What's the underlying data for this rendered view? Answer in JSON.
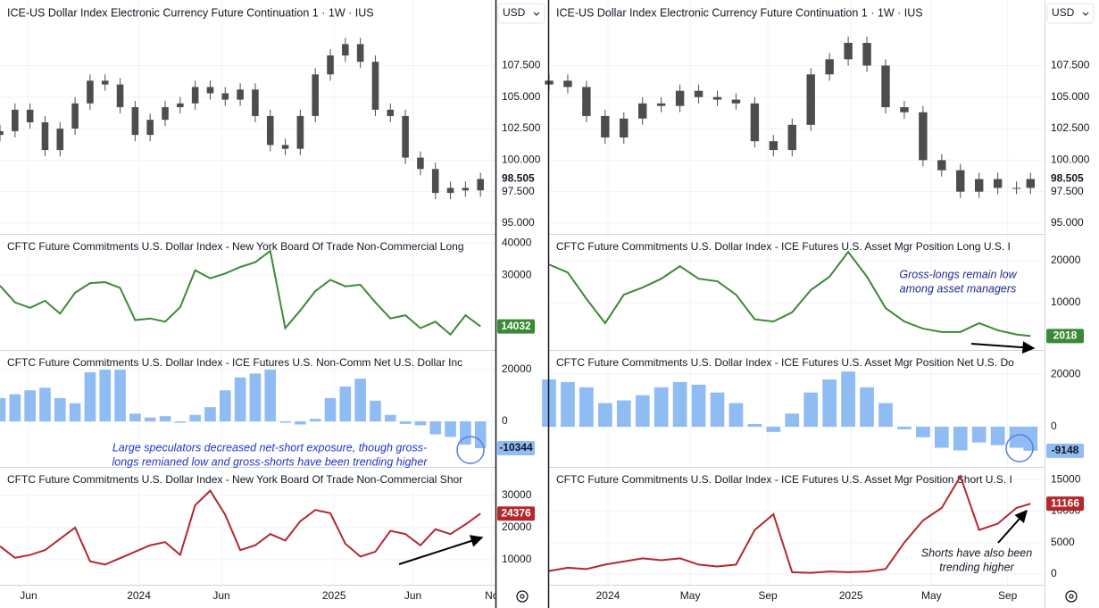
{
  "chart_data": [
    {
      "type": "candlestick",
      "title": "ICE-US Dollar Index Electronic Currency Future Continuation 1 · 1W · IUS",
      "currency": "USD",
      "color": "#4d4d4d",
      "x": [
        0,
        4,
        8,
        12,
        16,
        20,
        24,
        28,
        32,
        36,
        40,
        44,
        48,
        52,
        56,
        60,
        64,
        68,
        72,
        76,
        80,
        84,
        88,
        92,
        96,
        100,
        104,
        108,
        112,
        116,
        120,
        124,
        128
      ],
      "open": [
        102.0,
        102.3,
        104,
        103,
        100.8,
        102.5,
        104.5,
        106.3,
        106,
        104.2,
        102,
        103.2,
        104.2,
        104.5,
        105.8,
        105.3,
        104.8,
        105.6,
        103.5,
        101.2,
        100.9,
        103.5,
        106.8,
        108.3,
        109.2,
        107.8,
        104,
        103.5,
        100.2,
        99.3,
        97.4,
        97.8,
        97.6
      ],
      "high": [
        102.8,
        104.5,
        104.5,
        103.5,
        103,
        105,
        106.8,
        106.8,
        106.5,
        104.7,
        103.7,
        104.7,
        105,
        106.3,
        106.3,
        105.8,
        106.1,
        106.1,
        104,
        101.7,
        104,
        107.3,
        108.8,
        109.7,
        109.7,
        108.3,
        104.5,
        104,
        100.7,
        99.8,
        98.3,
        98.3,
        99.0
      ],
      "low": [
        101.5,
        101.8,
        102.5,
        100.3,
        100.3,
        102,
        104,
        105.5,
        103.7,
        101.5,
        101.5,
        102.7,
        103.7,
        104,
        104.8,
        104.3,
        104.3,
        103,
        100.7,
        100.4,
        100.4,
        103,
        106.3,
        107.8,
        107.3,
        103.5,
        103,
        99.7,
        98.8,
        96.9,
        96.9,
        97.1,
        97.1
      ],
      "close": [
        102.3,
        104,
        103,
        100.8,
        102.5,
        104.5,
        106.3,
        106,
        104.2,
        102,
        103.2,
        104.2,
        104.5,
        105.8,
        105.3,
        104.8,
        105.6,
        103.5,
        101.2,
        100.9,
        103.5,
        106.8,
        108.3,
        109.2,
        107.8,
        104,
        103.5,
        100.2,
        99.3,
        97.4,
        97.8,
        97.6,
        98.505
      ],
      "xlim": [
        0,
        132
      ],
      "ylim": [
        94.15,
        112.7
      ],
      "yticks": [
        {
          "value": 95,
          "label": "95.000"
        },
        {
          "value": 97.5,
          "label": "97.500"
        },
        {
          "value": 100,
          "label": "100.000"
        },
        {
          "value": 102.5,
          "label": "102.500"
        },
        {
          "value": 105,
          "label": "105.000"
        },
        {
          "value": 107.5,
          "label": "107.500"
        }
      ]
    },
    {
      "type": "line",
      "title": "CFTC Future Commitments U.S. Dollar Index - New York Board Of Trade Non-Commercial Long",
      "color": "#3a8a35",
      "x": [
        0,
        4,
        8,
        12,
        16,
        20,
        24,
        28,
        32,
        36,
        40,
        44,
        48,
        52,
        56,
        60,
        64,
        68,
        72,
        76,
        80,
        84,
        88,
        92,
        96,
        100,
        104,
        108,
        112,
        116,
        120,
        124,
        128
      ],
      "values": [
        26700,
        21500,
        19800,
        22000,
        18000,
        24500,
        27500,
        27800,
        26000,
        16000,
        16500,
        15500,
        20000,
        31500,
        29000,
        30500,
        32500,
        34000,
        37500,
        13500,
        19000,
        25000,
        28500,
        26500,
        27000,
        21500,
        16500,
        17500,
        13500,
        15500,
        11500,
        17500,
        14032
      ],
      "xlim": [
        0,
        132
      ],
      "ylim": [
        6700,
        42800
      ],
      "yticks": [
        30000,
        40000
      ]
    },
    {
      "type": "bar",
      "title": "CFTC Future Commitments U.S. Dollar Index - ICE Futures U.S. Non-Comm Net U.S. Dollar Inc",
      "color": "#8fbcf3",
      "x": [
        0,
        4,
        8,
        12,
        16,
        20,
        24,
        28,
        32,
        36,
        40,
        44,
        48,
        52,
        56,
        60,
        64,
        68,
        72,
        76,
        80,
        84,
        88,
        92,
        96,
        100,
        104,
        108,
        112,
        116,
        120,
        124,
        128
      ],
      "values": [
        9000,
        10500,
        12000,
        13000,
        9000,
        7000,
        19000,
        20000,
        20000,
        3000,
        1500,
        2000,
        -500,
        2500,
        5500,
        12000,
        17000,
        18500,
        20000,
        -500,
        -1200,
        1000,
        9000,
        13500,
        16500,
        8000,
        2500,
        -1000,
        -1500,
        -5000,
        -6000,
        -9000,
        -10344
      ],
      "xlim": [
        0,
        132
      ],
      "ylim": [
        -17600,
        27600
      ],
      "yticks": [
        0,
        20000
      ],
      "annotation": [
        "Large speculators decreased net-short exposure, though gross-",
        "longs remianed low and gross-shorts have been trending higher"
      ]
    },
    {
      "type": "line",
      "title": "CFTC Future Commitments U.S. Dollar Index - New York Board Of Trade Non-Commercial Shor",
      "color": "#b3282d",
      "x": [
        0,
        4,
        8,
        12,
        16,
        20,
        24,
        28,
        32,
        36,
        40,
        44,
        48,
        52,
        56,
        60,
        64,
        68,
        72,
        76,
        80,
        84,
        88,
        92,
        96,
        100,
        104,
        108,
        112,
        116,
        120,
        124,
        128
      ],
      "values": [
        14200,
        10600,
        11500,
        13000,
        16500,
        20000,
        9500,
        8500,
        10500,
        12500,
        14500,
        15500,
        11500,
        27000,
        31500,
        24000,
        13000,
        14500,
        18000,
        16000,
        22000,
        25500,
        24500,
        15000,
        11000,
        12500,
        19000,
        18000,
        14500,
        19500,
        18000,
        21000,
        24376
      ],
      "xlim": [
        0,
        132
      ],
      "ylim": [
        2200,
        38900
      ],
      "yticks": [
        10000,
        20000,
        30000
      ],
      "xticks": [
        {
          "value": 7.6,
          "label": "Jun"
        },
        {
          "value": 37,
          "label": "2024"
        },
        {
          "value": 59,
          "label": "Jun"
        },
        {
          "value": 89,
          "label": "2025"
        },
        {
          "value": 110,
          "label": "Jun"
        },
        {
          "value": 131,
          "label": "No"
        }
      ]
    },
    {
      "type": "candlestick",
      "title": "ICE-US Dollar Index Electronic Currency Future Continuation 1 · 1W · IUS",
      "currency": "USD",
      "color": "#4d4d4d",
      "x": [
        0,
        4,
        8,
        12,
        16,
        20,
        24,
        28,
        32,
        36,
        40,
        44,
        48,
        52,
        56,
        60,
        64,
        68,
        72,
        76,
        80,
        84,
        88,
        92,
        96,
        100,
        103
      ],
      "open": [
        106.0,
        106.3,
        105.8,
        103.5,
        101.8,
        103.3,
        104.5,
        104.3,
        105.5,
        105,
        104.8,
        104.5,
        101.5,
        100.8,
        102.8,
        106.8,
        108,
        109.3,
        107.5,
        104.2,
        103.8,
        100,
        99.2,
        97.5,
        98.5,
        97.8,
        97.8
      ],
      "high": [
        106.8,
        106.8,
        106.3,
        104,
        103.8,
        105,
        105,
        106,
        106,
        105.5,
        105.3,
        105,
        102,
        103.3,
        107.3,
        108.5,
        109.8,
        109.8,
        108,
        104.7,
        104.3,
        100.5,
        99.7,
        99,
        99,
        98.3,
        99.0
      ],
      "low": [
        105.5,
        105.3,
        103,
        101.3,
        101.3,
        102.8,
        103.8,
        103.8,
        104.5,
        104.3,
        104,
        101,
        100.3,
        100.3,
        102.3,
        106.3,
        107.5,
        107,
        103.7,
        103.3,
        99.5,
        98.7,
        97,
        97,
        97.3,
        97.3,
        97.3
      ],
      "close": [
        106.3,
        105.8,
        103.5,
        101.8,
        103.3,
        104.5,
        104.3,
        105.5,
        105,
        104.8,
        104.5,
        101.5,
        100.8,
        102.8,
        106.8,
        108,
        109.3,
        107.5,
        104.2,
        103.8,
        100,
        99.2,
        97.5,
        98.5,
        97.8,
        97.8,
        98.505
      ],
      "xlim": [
        0,
        106
      ],
      "ylim": [
        94.15,
        112.7
      ],
      "yticks": [
        {
          "value": 95,
          "label": "95.000"
        },
        {
          "value": 97.5,
          "label": "97.500"
        },
        {
          "value": 100,
          "label": "100.000"
        },
        {
          "value": 102.5,
          "label": "102.500"
        },
        {
          "value": 105,
          "label": "105.000"
        },
        {
          "value": 107.5,
          "label": "107.500"
        }
      ]
    },
    {
      "type": "line",
      "title": "CFTC Future Commitments U.S. Dollar Index - ICE Futures U.S. Asset Mgr Position Long U.S. I",
      "color": "#3a8a35",
      "x": [
        0,
        4,
        8,
        12,
        16,
        20,
        24,
        28,
        32,
        36,
        40,
        44,
        48,
        52,
        56,
        60,
        64,
        68,
        72,
        76,
        80,
        84,
        88,
        92,
        96,
        100,
        103
      ],
      "values": [
        19100,
        17200,
        10900,
        5100,
        11900,
        13600,
        15700,
        18700,
        15700,
        15100,
        11900,
        6000,
        5500,
        7700,
        13000,
        16200,
        22100,
        16200,
        8700,
        5500,
        3800,
        3000,
        3000,
        5100,
        3400,
        2400,
        2018
      ],
      "xlim": [
        0,
        106
      ],
      "ylim": [
        -1300,
        26400
      ],
      "yticks": [
        10000,
        20000
      ],
      "annotation": [
        "Gross-longs remain low",
        "among asset managers"
      ]
    },
    {
      "type": "bar",
      "title": "CFTC Future Commitments U.S. Dollar Index - ICE Futures U.S. Asset Mgr Position Net U.S. Do",
      "color": "#8fbcf3",
      "x": [
        0,
        4,
        8,
        12,
        16,
        20,
        24,
        28,
        32,
        36,
        40,
        44,
        48,
        52,
        56,
        60,
        64,
        68,
        72,
        76,
        80,
        84,
        88,
        92,
        96,
        100,
        103
      ],
      "values": [
        18000,
        17000,
        15000,
        9000,
        10000,
        12000,
        15000,
        17000,
        16000,
        13000,
        9000,
        1000,
        -2000,
        5000,
        13000,
        18000,
        21000,
        15000,
        9000,
        -1000,
        -4000,
        -8000,
        -9000,
        -6000,
        -7000,
        -8000,
        -9148
      ],
      "xlim": [
        0,
        106
      ],
      "ylim": [
        -15300,
        29200
      ],
      "yticks": [
        0,
        20000
      ]
    },
    {
      "type": "line",
      "title": "CFTC Future Commitments U.S. Dollar Index - ICE Futures U.S. Asset Mgr Position Short U.S. I",
      "color": "#b3282d",
      "x": [
        0,
        4,
        8,
        12,
        16,
        20,
        24,
        28,
        32,
        36,
        40,
        44,
        48,
        52,
        56,
        60,
        64,
        68,
        72,
        76,
        80,
        84,
        88,
        92,
        96,
        100,
        103
      ],
      "values": [
        500,
        1000,
        800,
        1500,
        2000,
        2500,
        2200,
        2500,
        1500,
        1200,
        1500,
        7000,
        9500,
        300,
        200,
        400,
        300,
        400,
        800,
        5000,
        8500,
        10500,
        15500,
        7000,
        8000,
        10500,
        11166
      ],
      "xlim": [
        0,
        106
      ],
      "ylim": [
        -1700,
        17000
      ],
      "yticks": [
        0,
        5000,
        10000,
        15000
      ],
      "xticks": [
        {
          "value": 12.6,
          "label": "2024"
        },
        {
          "value": 30.2,
          "label": "May"
        },
        {
          "value": 46.8,
          "label": "Sep"
        },
        {
          "value": 64.6,
          "label": "2025"
        },
        {
          "value": 81.8,
          "label": "May"
        },
        {
          "value": 98.1,
          "label": "Sep"
        }
      ],
      "annotation": [
        "Shorts have also been",
        "trending higher"
      ]
    }
  ]
}
